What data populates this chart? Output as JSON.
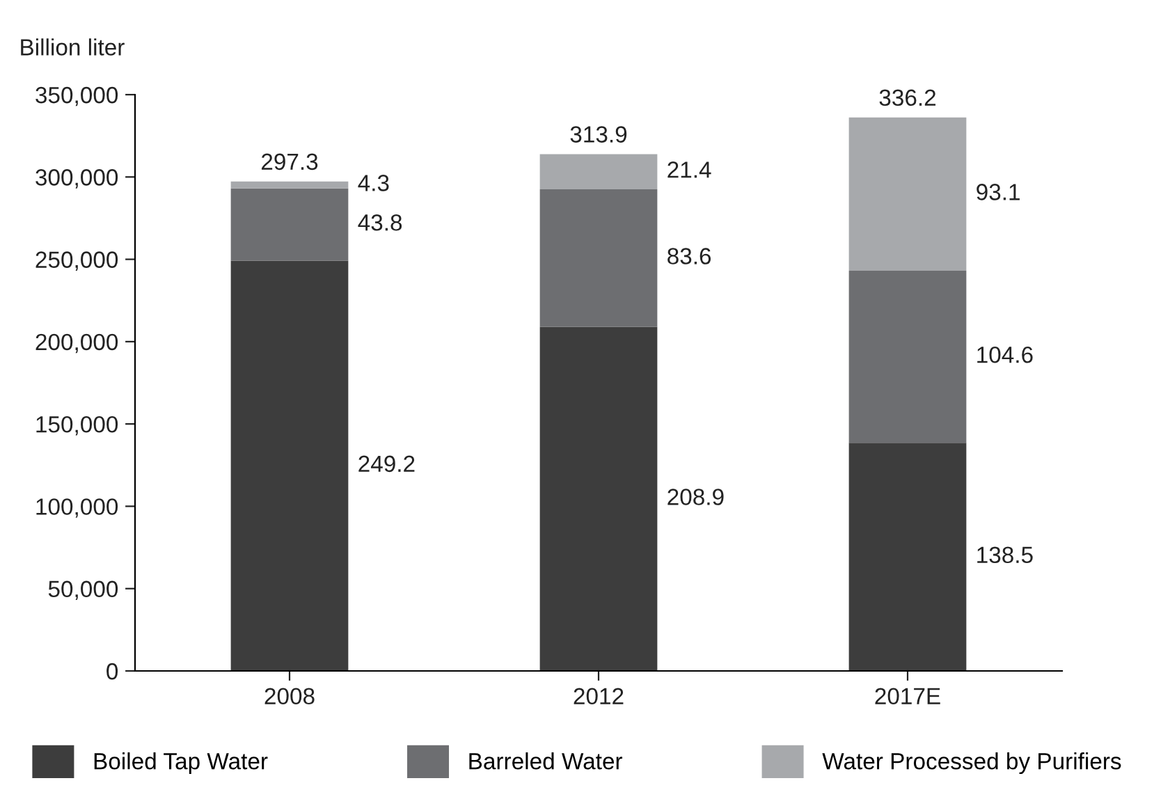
{
  "chart_data": {
    "type": "bar",
    "stacked": true,
    "ylabel": "Billion liter",
    "categories": [
      "2008",
      "2012",
      "2017E"
    ],
    "series": [
      {
        "name": "Boiled Tap Water",
        "color": "#3d3d3d",
        "values": [
          249200,
          208900,
          138500
        ]
      },
      {
        "name": "Barreled Water",
        "color": "#6d6e71",
        "values": [
          43800,
          83600,
          104600
        ]
      },
      {
        "name": "Water Processed by Purifiers",
        "color": "#a7a9ac",
        "values": [
          4300,
          21400,
          93100
        ]
      }
    ],
    "annotations": [
      "249.2",
      "208.9",
      "138.5",
      "43.8",
      "83.6",
      "104.6",
      "4.3",
      "21.4",
      "93.1",
      "297.3",
      "313.9",
      "336.2"
    ],
    "ylim": [
      0,
      350000
    ],
    "yticks": [
      {
        "value": 0,
        "label": "0"
      },
      {
        "value": 50000,
        "label": "50,000"
      },
      {
        "value": 100000,
        "label": "100,000"
      },
      {
        "value": 150000,
        "label": "150,000"
      },
      {
        "value": 200000,
        "label": "200,000"
      },
      {
        "value": 250000,
        "label": "250,000"
      },
      {
        "value": 300000,
        "label": "300,000"
      },
      {
        "value": 350000,
        "label": "350,000"
      }
    ],
    "grid": false,
    "legend": "bottom"
  }
}
